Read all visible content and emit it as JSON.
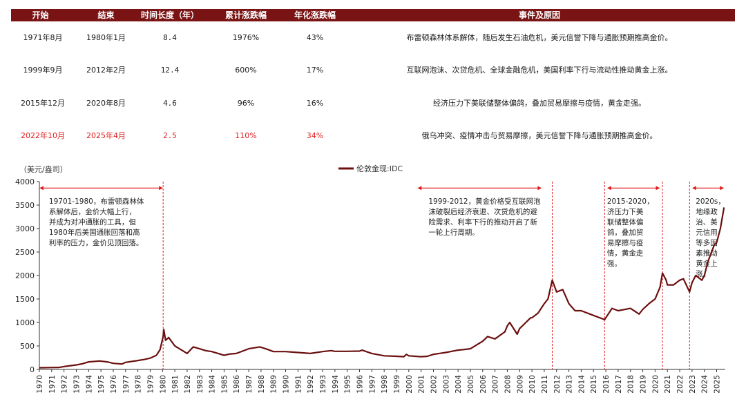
{
  "table": {
    "headers": [
      "开始",
      "结束",
      "时间长度（年）",
      "累计涨跌幅",
      "年化涨跌幅",
      "事件及原因"
    ],
    "rows": [
      {
        "start": "1971年8月",
        "end": "1980年1月",
        "years": "8.4",
        "cum": "1976%",
        "ann": "43%",
        "reason": "布雷顿森林体系解体，随后发生石油危机，美元信誉下降与通胀预期推高金价。",
        "highlight": false
      },
      {
        "start": "1999年9月",
        "end": "2012年2月",
        "years": "12.4",
        "cum": "600%",
        "ann": "17%",
        "reason": "互联网泡沫、次贷危机、全球金融危机，美国利率下行与流动性推动黄金上涨。",
        "highlight": false
      },
      {
        "start": "2015年12月",
        "end": "2020年8月",
        "years": "4.6",
        "cum": "96%",
        "ann": "16%",
        "reason": "经济压力下美联储整体偏鸽，叠加贸易摩擦与疫情，黄金走强。",
        "highlight": false
      },
      {
        "start": "2022年10月",
        "end": "2025年4月",
        "years": "2.5",
        "cum": "110%",
        "ann": "34%",
        "reason": "俄乌冲突、疫情冲击与贸易摩擦，美元信誉下降与通胀预期推高金价。",
        "highlight": true
      }
    ]
  },
  "colors": {
    "header_bg": "#7a1414",
    "line": "#6b0f0f",
    "arrow": "#e02020",
    "highlight": "#e02020"
  },
  "chart_data": {
    "type": "line",
    "ylabel": "（美元/盎司）",
    "ylim": [
      0,
      4000
    ],
    "yticks": [
      0,
      500,
      1000,
      1500,
      2000,
      2500,
      3000,
      3500,
      4000
    ],
    "xlim": [
      1970,
      2025.7
    ],
    "xticks": [
      "1970",
      "1971",
      "1972",
      "1973",
      "1974",
      "1975",
      "1976",
      "1977",
      "1978",
      "1979",
      "1980",
      "1981",
      "1982",
      "1983",
      "1984",
      "1985",
      "1986",
      "1987",
      "1988",
      "1989",
      "1990",
      "1991",
      "1992",
      "1993",
      "1994",
      "1995",
      "1996",
      "1997",
      "1998",
      "1999",
      "2000",
      "2001",
      "2002",
      "2003",
      "2004",
      "2005",
      "2006",
      "2007",
      "2008",
      "2009",
      "2010",
      "2011",
      "2012",
      "2013",
      "2014",
      "2015",
      "2016",
      "2017",
      "2018",
      "2019",
      "2020",
      "2021",
      "2022",
      "2023",
      "2024",
      "2025"
    ],
    "series": [
      {
        "name": "伦敦金现:IDC",
        "x": [
          1970,
          1971,
          1971.6,
          1972,
          1973,
          1973.5,
          1974,
          1974.9,
          1975.5,
          1976,
          1976.7,
          1977,
          1978,
          1978.5,
          1979,
          1979.5,
          1979.8,
          1980.05,
          1980.1,
          1980.25,
          1980.5,
          1981,
          1981.5,
          1982,
          1982.5,
          1983,
          1983.5,
          1984,
          1985,
          1985.5,
          1986,
          1987,
          1987.9,
          1988.5,
          1989,
          1990,
          1991,
          1992,
          1993,
          1993.7,
          1994,
          1995,
          1996,
          1996.2,
          1997,
          1998,
          1999,
          1999.6,
          1999.8,
          2000,
          2001,
          2001.5,
          2002,
          2003,
          2004,
          2005,
          2006,
          2006.4,
          2007,
          2007.8,
          2008,
          2008.2,
          2008.8,
          2009,
          2009.9,
          2010,
          2010.5,
          2011,
          2011.3,
          2011.65,
          2012,
          2012.5,
          2013,
          2013.5,
          2014,
          2015,
          2015.9,
          2016,
          2016.5,
          2017,
          2018,
          2018.7,
          2019,
          2019.5,
          2020,
          2020.4,
          2020.6,
          2020.9,
          2021,
          2021.5,
          2022,
          2022.3,
          2022.8,
          2023,
          2023.3,
          2023.8,
          2024,
          2024.3,
          2024.8,
          2025,
          2025.3,
          2025.6
        ],
        "y": [
          35,
          40,
          42,
          60,
          95,
          120,
          160,
          180,
          160,
          130,
          115,
          150,
          190,
          210,
          240,
          300,
          420,
          700,
          850,
          620,
          680,
          500,
          420,
          340,
          480,
          440,
          400,
          380,
          300,
          330,
          340,
          440,
          480,
          430,
          380,
          380,
          360,
          340,
          380,
          400,
          385,
          385,
          390,
          410,
          340,
          290,
          280,
          270,
          320,
          290,
          270,
          280,
          320,
          360,
          410,
          440,
          600,
          700,
          650,
          800,
          930,
          1000,
          750,
          870,
          1100,
          1100,
          1200,
          1400,
          1500,
          1900,
          1650,
          1700,
          1400,
          1250,
          1250,
          1150,
          1060,
          1100,
          1300,
          1250,
          1300,
          1180,
          1280,
          1400,
          1500,
          1750,
          2050,
          1900,
          1800,
          1800,
          1900,
          1930,
          1650,
          1850,
          2000,
          1900,
          2000,
          2300,
          2650,
          2700,
          3000,
          3450
        ]
      }
    ],
    "vlines": [
      1980.05,
      2011.65,
      2015.9,
      2020.6,
      2022.8
    ],
    "arrows": [
      {
        "from": 1970,
        "to": 1980.05
      },
      {
        "from": 2000.7,
        "to": 2010.8
      },
      {
        "from": 2016.1,
        "to": 2020.4
      },
      {
        "from": 2023.0,
        "to": 2025.6
      }
    ],
    "annotations": [
      {
        "at": 1970.5,
        "lines": [
          "19701-1980，布雷顿森林体",
          "系解体后，金价大幅上行，",
          "并成为对冲通胀的工具，但",
          "1980年后美国通胀回落和高",
          "利率的压力，金价见顶回落。"
        ]
      },
      {
        "at": 2001.6,
        "lines": [
          "1999-2012，黄金价格受互联网泡",
          "沫破裂后经济衰退、次贷危机的避",
          "险需求、利率下行的推动开启了新",
          "一轮上行周期。"
        ]
      },
      {
        "at": 2016.1,
        "lines": [
          "2015-2020，",
          "济压力下美",
          "联储整体偏",
          "鸽，叠加贸",
          "易摩擦与疫",
          "情，黄金走",
          "强。"
        ]
      },
      {
        "at": 2023.3,
        "lines": [
          "2020s，",
          "地缘政",
          "治、美",
          "元信用",
          "等多因",
          "素推动",
          "黄金上",
          "涨。"
        ]
      }
    ]
  }
}
